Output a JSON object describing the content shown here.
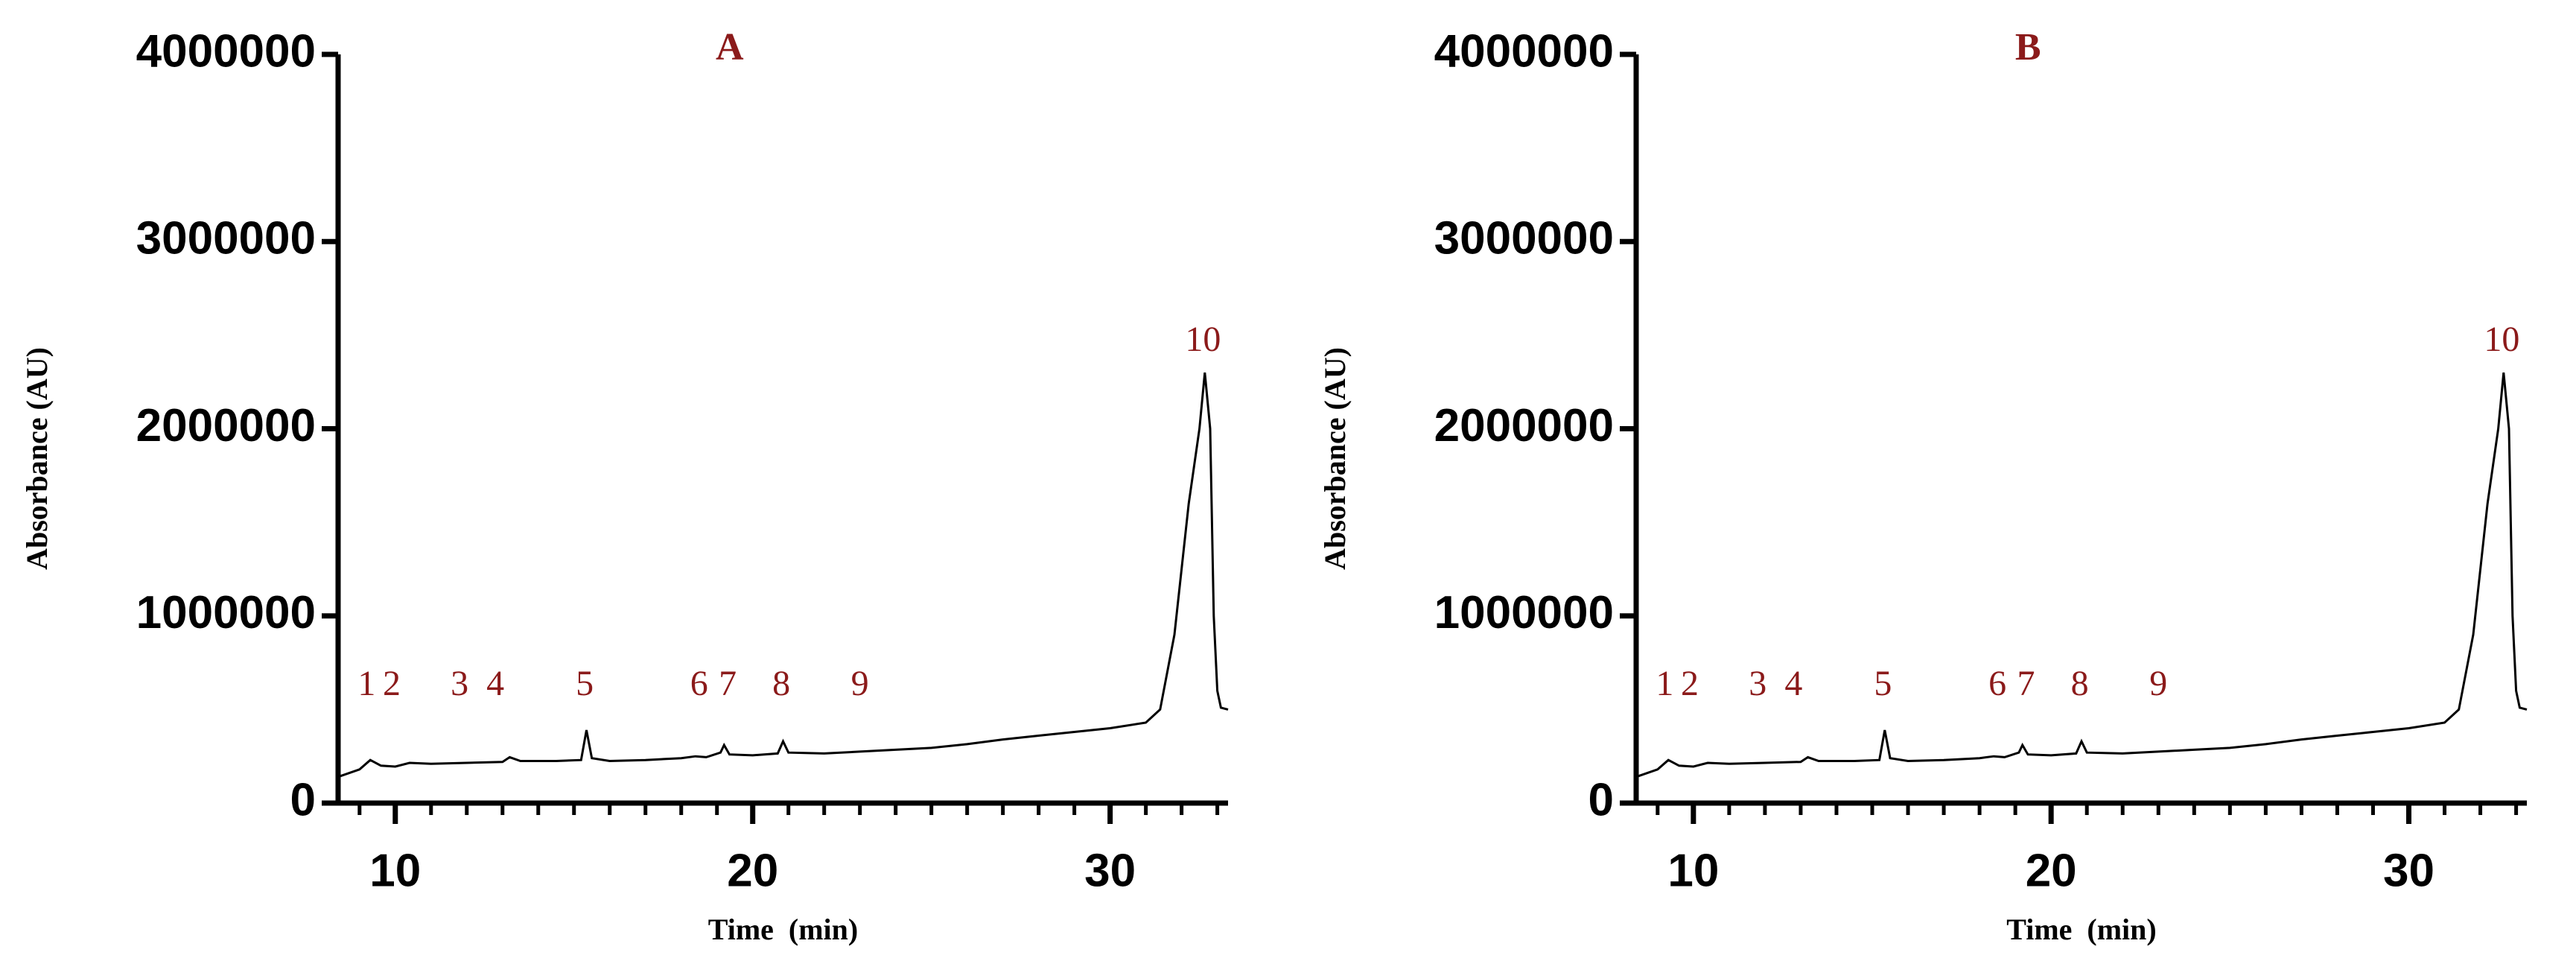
{
  "chart_data": [
    {
      "type": "line",
      "title": "A",
      "xlabel": "Time  (min)",
      "ylabel": "Absorbance (AU)",
      "x": [
        8.4,
        9.0,
        9.3,
        9.6,
        10.0,
        10.4,
        11,
        12,
        13,
        13.2,
        13.5,
        14.5,
        15.2,
        15.35,
        15.5,
        16,
        17,
        18,
        18.4,
        18.7,
        19.1,
        19.2,
        19.35,
        20,
        20.7,
        20.85,
        21.0,
        22,
        23,
        24,
        25,
        26,
        27,
        28,
        29,
        30,
        31,
        31.4,
        31.8,
        32.2,
        32.5,
        32.65,
        32.8,
        32.9,
        33.0,
        33.1,
        33.3
      ],
      "series": [
        {
          "color": "#000000",
          "values": [
            140000,
            180000,
            230000,
            200000,
            195000,
            215000,
            210000,
            215000,
            220000,
            245000,
            225000,
            225000,
            230000,
            390000,
            240000,
            225000,
            230000,
            240000,
            250000,
            245000,
            270000,
            310000,
            260000,
            255000,
            265000,
            330000,
            270000,
            265000,
            275000,
            285000,
            295000,
            315000,
            340000,
            360000,
            380000,
            400000,
            430000,
            500000,
            900000,
            1600000,
            2000000,
            2300000,
            2000000,
            1000000,
            600000,
            510000,
            500000
          ]
        }
      ],
      "xlim": [
        8.4,
        33.3
      ],
      "ylim": [
        0,
        4000000
      ],
      "xticks": [
        10,
        20,
        30
      ],
      "xminorticks": [
        9,
        11,
        12,
        13,
        14,
        15,
        16,
        17,
        18,
        19,
        21,
        22,
        23,
        24,
        25,
        26,
        27,
        28,
        29,
        31,
        32,
        33
      ],
      "yticks": [
        0,
        1000000,
        2000000,
        3000000,
        4000000
      ],
      "annotations": [
        {
          "text": "1",
          "x": 9.2,
          "y": 620000
        },
        {
          "text": "2",
          "x": 9.9,
          "y": 620000
        },
        {
          "text": "3",
          "x": 11.8,
          "y": 620000
        },
        {
          "text": "4",
          "x": 12.8,
          "y": 620000
        },
        {
          "text": "5",
          "x": 15.3,
          "y": 620000
        },
        {
          "text": "6",
          "x": 18.5,
          "y": 620000
        },
        {
          "text": "7",
          "x": 19.3,
          "y": 620000
        },
        {
          "text": "8",
          "x": 20.8,
          "y": 620000
        },
        {
          "text": "9",
          "x": 23.0,
          "y": 620000
        },
        {
          "text": "10",
          "x": 32.6,
          "y": 2460000
        }
      ]
    },
    {
      "type": "line",
      "title": "B",
      "xlabel": "Time  (min)",
      "ylabel": "Absorbance (AU)",
      "x": [
        8.4,
        9.0,
        9.3,
        9.6,
        10.0,
        10.4,
        11,
        12,
        13,
        13.2,
        13.5,
        14.5,
        15.2,
        15.35,
        15.5,
        16,
        17,
        18,
        18.4,
        18.7,
        19.1,
        19.2,
        19.35,
        20,
        20.7,
        20.85,
        21.0,
        22,
        23,
        24,
        25,
        26,
        27,
        28,
        29,
        30,
        31,
        31.4,
        31.8,
        32.2,
        32.5,
        32.65,
        32.8,
        32.9,
        33.0,
        33.1,
        33.3
      ],
      "series": [
        {
          "color": "#000000",
          "values": [
            140000,
            180000,
            230000,
            200000,
            195000,
            215000,
            210000,
            215000,
            220000,
            245000,
            225000,
            225000,
            230000,
            390000,
            240000,
            225000,
            230000,
            240000,
            250000,
            245000,
            270000,
            310000,
            260000,
            255000,
            265000,
            330000,
            270000,
            265000,
            275000,
            285000,
            295000,
            315000,
            340000,
            360000,
            380000,
            400000,
            430000,
            500000,
            900000,
            1600000,
            2000000,
            2300000,
            2000000,
            1000000,
            600000,
            510000,
            500000
          ]
        }
      ],
      "xlim": [
        8.4,
        33.3
      ],
      "ylim": [
        0,
        4000000
      ],
      "xticks": [
        10,
        20,
        30
      ],
      "xminorticks": [
        9,
        11,
        12,
        13,
        14,
        15,
        16,
        17,
        18,
        19,
        21,
        22,
        23,
        24,
        25,
        26,
        27,
        28,
        29,
        31,
        32,
        33
      ],
      "yticks": [
        0,
        1000000,
        2000000,
        3000000,
        4000000
      ],
      "annotations": [
        {
          "text": "1",
          "x": 9.2,
          "y": 620000
        },
        {
          "text": "2",
          "x": 9.9,
          "y": 620000
        },
        {
          "text": "3",
          "x": 11.8,
          "y": 620000
        },
        {
          "text": "4",
          "x": 12.8,
          "y": 620000
        },
        {
          "text": "5",
          "x": 15.3,
          "y": 620000
        },
        {
          "text": "6",
          "x": 18.5,
          "y": 620000
        },
        {
          "text": "7",
          "x": 19.3,
          "y": 620000
        },
        {
          "text": "8",
          "x": 20.8,
          "y": 620000
        },
        {
          "text": "9",
          "x": 23.0,
          "y": 620000
        },
        {
          "text": "10",
          "x": 32.6,
          "y": 2460000
        }
      ]
    }
  ]
}
